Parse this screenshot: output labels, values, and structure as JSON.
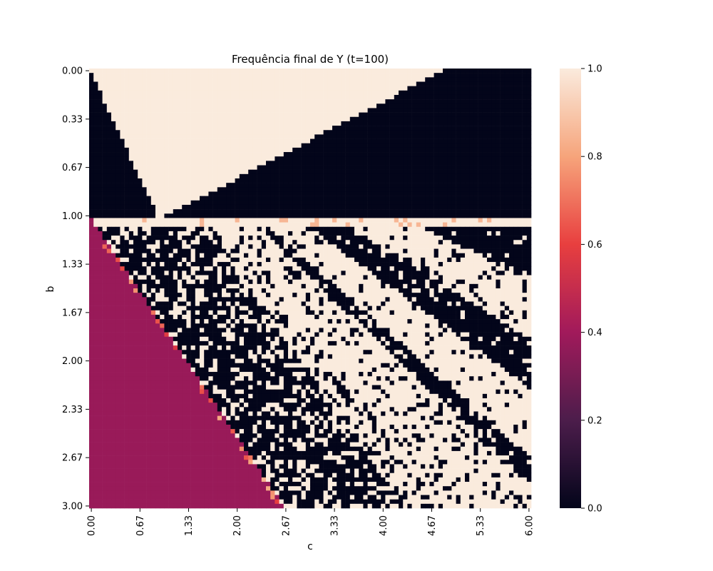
{
  "chart_data": {
    "type": "heatmap",
    "title": "Frequência final de Y (t=100)",
    "xlabel": "c",
    "ylabel": "b",
    "x_range": [
      0,
      6
    ],
    "y_range": [
      0,
      3
    ],
    "y_inverted": true,
    "grid_resolution": [
      100,
      100
    ],
    "x_tick_labels": [
      "0.00",
      "0.67",
      "1.33",
      "2.00",
      "2.67",
      "3.33",
      "4.00",
      "4.67",
      "5.33",
      "6.00"
    ],
    "y_tick_labels": [
      "0.00",
      "0.33",
      "0.67",
      "1.00",
      "1.33",
      "1.67",
      "2.00",
      "2.33",
      "2.67",
      "3.00"
    ],
    "colorbar": {
      "min": 0.0,
      "max": 1.0,
      "tick_labels": [
        "0.0",
        "0.2",
        "0.4",
        "0.6",
        "0.8",
        "1.0"
      ],
      "colormap": "rocket",
      "colors": [
        "#03051a",
        "#4c1d4b",
        "#a11a5b",
        "#e83f3f",
        "#f6a47b",
        "#faebdd"
      ]
    },
    "regions": [
      {
        "name": "upper-wedge",
        "b_range": [
          0,
          1.0
        ],
        "description_value": 1.0,
        "outside_value": 0.0
      },
      {
        "name": "lower-left-triangle",
        "b_range": [
          1.0,
          3.0
        ],
        "value": 0.38
      },
      {
        "name": "striped-region",
        "b_range": [
          1.05,
          3.0
        ],
        "values": [
          0.0,
          1.0
        ]
      }
    ]
  }
}
